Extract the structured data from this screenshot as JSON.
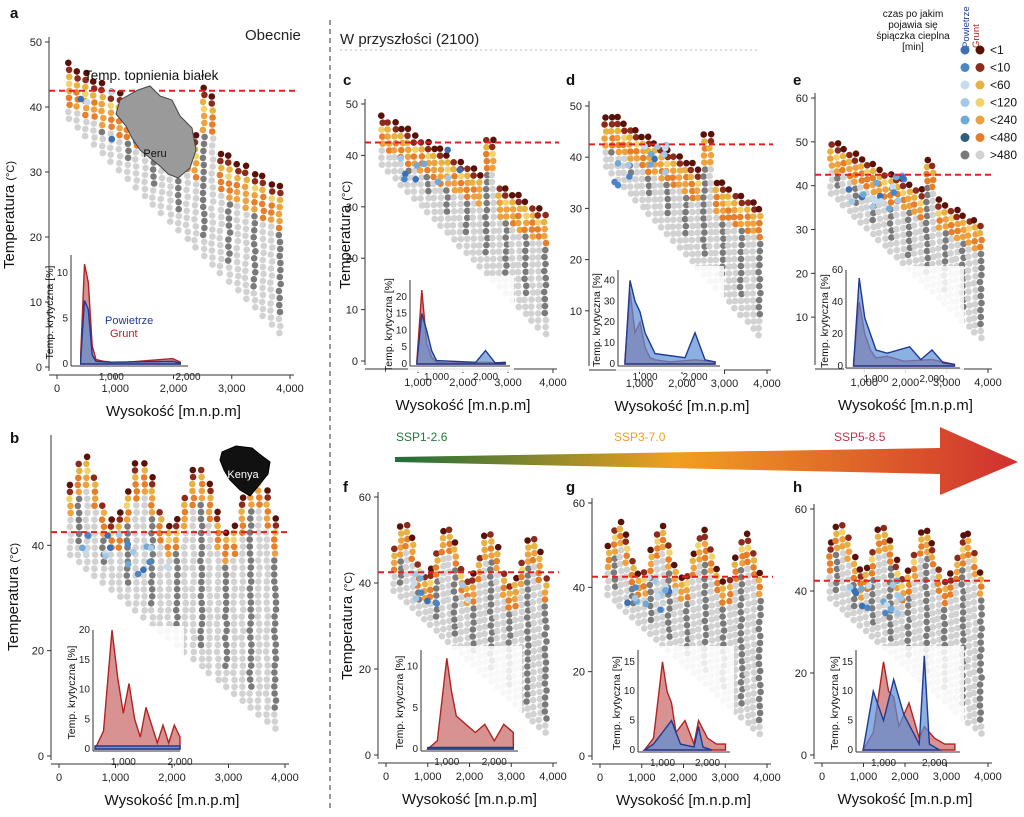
{
  "figure": {
    "header_present": "Obecnie",
    "header_future": "W przyszłości (2100)",
    "xlabel": "Wysokość  [m.n.p.m]",
    "ylabel": "Temperatura",
    "ylabel_unit": "(°C)",
    "inset_ylabel": "Temp. krytyczna [%]",
    "threshold_label": "Temp. topnienia białek",
    "threshold": 42.5
  },
  "countries": {
    "peru": "Peru",
    "kenya": "Kenya"
  },
  "inset_legend": {
    "air": "Powietrze",
    "ground": "Grunt"
  },
  "colors": {
    "air_line": "#1f3a93",
    "air_fill": "#5b8fd6",
    "ground_line": "#b22222",
    "ground_fill": "#c86464",
    "threshold": "#e02020",
    "bg_point": "#d2d2d2",
    "inner_point": "#7a7a7a"
  },
  "legend": {
    "title": "czas po jakim\npojawia się\nśpiączka cieplna\n[min]",
    "col_air": "Powietrze",
    "col_ground": "Grunt",
    "items": [
      {
        "label": "<1",
        "air": "#3b6fb6",
        "ground": "#5a1208"
      },
      {
        "label": "<10",
        "air": "#4a86c5",
        "ground": "#8c2a1c"
      },
      {
        "label": "<60",
        "air": "#c6dced",
        "ground": "#e8b243"
      },
      {
        "label": "<120",
        "air": "#a3c9e6",
        "ground": "#f2d26a"
      },
      {
        "label": "<240",
        "air": "#6fa9d6",
        "ground": "#eea23f"
      },
      {
        "label": "<480",
        "air": "#2e5f7a",
        "ground": "#e67e2a"
      },
      {
        "label": ">480",
        "air": "#7a7a7a",
        "ground": "#d2d2d2"
      }
    ]
  },
  "scenarios": [
    {
      "label": "SSP1-2.6",
      "color": "#1e7a3a"
    },
    {
      "label": "SSP3-7.0",
      "color": "#f0a020"
    },
    {
      "label": "SSP5-8.5",
      "color": "#c0304a"
    }
  ],
  "chart_data": [
    {
      "id": "a",
      "type": "scatter",
      "region": "Peru",
      "period": "Obecnie",
      "xlim": [
        0,
        4000
      ],
      "xticks": [
        "0",
        "1,000",
        "2,000",
        "3,000",
        "4,000"
      ],
      "ylim": [
        0,
        50
      ],
      "yticks": [
        0,
        10,
        20,
        30,
        40,
        50
      ],
      "inset": {
        "xlim": [
          500,
          2000
        ],
        "xticks": [
          "1,000",
          "2,000"
        ],
        "ylim": [
          0,
          12
        ],
        "yticks": [
          0,
          5,
          10
        ],
        "ground": {
          "x": [
            600,
            650,
            700,
            750,
            800,
            900,
            1000,
            1200,
            1800,
            1900
          ],
          "y": [
            1,
            11,
            9,
            2,
            0.5,
            0.3,
            0.2,
            0.2,
            0.6,
            0.2
          ]
        },
        "air": {
          "x": [
            600,
            650,
            700,
            750,
            800,
            1000,
            1800,
            1900
          ],
          "y": [
            0.5,
            7,
            6,
            1,
            0.3,
            0.2,
            0.3,
            0.1
          ]
        }
      }
    },
    {
      "id": "b",
      "type": "scatter",
      "region": "Kenya",
      "period": "Obecnie",
      "xlim": [
        0,
        4000
      ],
      "xticks": [
        "0",
        "1,000",
        "2,000",
        "3,000",
        "4,000"
      ],
      "ylim": [
        0,
        60
      ],
      "yticks": [
        0,
        20,
        40
      ],
      "inset": {
        "xlim": [
          500,
          2000
        ],
        "xticks": [
          "1,000",
          "2,000"
        ],
        "ylim": [
          0,
          20
        ],
        "yticks": [
          0,
          5,
          10,
          15,
          20
        ],
        "ground": {
          "x": [
            500,
            650,
            800,
            900,
            1000,
            1100,
            1200,
            1300,
            1400,
            1500,
            1600,
            1700,
            1800,
            1900,
            2000
          ],
          "y": [
            0,
            3,
            20,
            12,
            6,
            11,
            5,
            2,
            7,
            4,
            1,
            4,
            1,
            4,
            2
          ]
        },
        "air": {
          "x": [
            500,
            2000
          ],
          "y": [
            0.5,
            0.5
          ]
        }
      }
    },
    {
      "id": "c",
      "type": "scatter",
      "region": "Peru",
      "scenario": "SSP1-2.6",
      "xlim": [
        0,
        4000
      ],
      "xticks": [
        "1,000",
        "2,000",
        "3,000",
        "4,000"
      ],
      "ylim": [
        0,
        50
      ],
      "yticks": [
        0,
        10,
        20,
        30,
        40,
        50
      ],
      "inset": {
        "xlim": [
          500,
          2500
        ],
        "xticks": [
          "1,000",
          "2,000"
        ],
        "ylim": [
          0,
          25
        ],
        "yticks": [
          0,
          5,
          10,
          15,
          20
        ],
        "ground": {
          "x": [
            600,
            700,
            800,
            900,
            1000,
            1200,
            2000,
            2400
          ],
          "y": [
            1,
            22,
            6,
            2,
            0.5,
            0.3,
            0.5,
            0.3
          ]
        },
        "air": {
          "x": [
            600,
            700,
            800,
            900,
            1000,
            1800,
            2000,
            2200,
            2400
          ],
          "y": [
            0.5,
            15,
            10,
            4,
            1,
            0.5,
            4,
            0.3,
            0.5
          ]
        }
      }
    },
    {
      "id": "d",
      "type": "scatter",
      "region": "Peru",
      "scenario": "SSP3-7.0",
      "xlim": [
        0,
        4000
      ],
      "xticks": [
        "1,000",
        "2,000",
        "3,000",
        "4,000"
      ],
      "ylim": [
        0,
        50
      ],
      "yticks": [
        10,
        20,
        30,
        40,
        50
      ],
      "inset": {
        "xlim": [
          500,
          2500
        ],
        "xticks": [
          "1,000",
          "2,000"
        ],
        "ylim": [
          0,
          45
        ],
        "yticks": [
          0,
          10,
          20,
          30,
          40
        ],
        "ground": {
          "x": [
            600,
            700,
            800,
            900,
            1000,
            1100,
            1200,
            1500,
            2000,
            2400
          ],
          "y": [
            2,
            35,
            15,
            20,
            8,
            3,
            2,
            1,
            2,
            1
          ]
        },
        "air": {
          "x": [
            600,
            700,
            800,
            900,
            1000,
            1200,
            1800,
            2000,
            2200,
            2400
          ],
          "y": [
            1,
            40,
            30,
            25,
            15,
            5,
            3,
            15,
            2,
            1
          ]
        }
      }
    },
    {
      "id": "e",
      "type": "scatter",
      "region": "Peru",
      "scenario": "SSP5-8.5",
      "xlim": [
        0,
        4000
      ],
      "xticks": [
        "1,000",
        "2,000",
        "3,000",
        "4,000"
      ],
      "ylim": [
        0,
        60
      ],
      "yticks": [
        10,
        20,
        30,
        40,
        50,
        60
      ],
      "inset": {
        "xlim": [
          500,
          2500
        ],
        "xticks": [
          "1,000",
          "2,000"
        ],
        "ylim": [
          0,
          60
        ],
        "yticks": [
          0,
          20,
          40,
          60
        ],
        "ground": {
          "x": [
            600,
            700,
            800,
            900,
            1000,
            1200,
            1500,
            2000,
            2400
          ],
          "y": [
            2,
            40,
            20,
            10,
            5,
            6,
            3,
            4,
            1
          ]
        },
        "air": {
          "x": [
            600,
            700,
            800,
            900,
            1000,
            1200,
            1600,
            1800,
            2000,
            2200,
            2400
          ],
          "y": [
            1,
            55,
            30,
            20,
            10,
            8,
            12,
            4,
            10,
            2,
            1
          ]
        }
      }
    },
    {
      "id": "f",
      "type": "scatter",
      "region": "Kenya",
      "scenario": "SSP1-2.6",
      "xlim": [
        0,
        4000
      ],
      "xticks": [
        "0",
        "1,000",
        "2,000",
        "3,000",
        "4,000"
      ],
      "ylim": [
        0,
        60
      ],
      "yticks": [
        0,
        20,
        40,
        60
      ],
      "inset": {
        "xlim": [
          500,
          2500
        ],
        "xticks": [
          "1,000",
          "2,000"
        ],
        "ylim": [
          0,
          12
        ],
        "yticks": [
          0,
          5,
          10
        ],
        "ground": {
          "x": [
            600,
            800,
            1000,
            1100,
            1200,
            1400,
            1600,
            1800,
            2000,
            2200,
            2400
          ],
          "y": [
            0,
            1,
            11,
            7,
            4,
            3,
            2,
            3,
            1,
            3,
            2
          ]
        },
        "air": {
          "x": [
            600,
            2400
          ],
          "y": [
            0.2,
            0.2
          ]
        }
      }
    },
    {
      "id": "g",
      "type": "scatter",
      "region": "Kenya",
      "scenario": "SSP3-7.0",
      "xlim": [
        0,
        4000
      ],
      "xticks": [
        "0",
        "1,000",
        "2,000",
        "3,000",
        "4,000"
      ],
      "ylim": [
        0,
        60
      ],
      "yticks": [
        0,
        20,
        40,
        60
      ],
      "inset": {
        "xlim": [
          500,
          2500
        ],
        "xticks": [
          "1,000",
          "2,000"
        ],
        "ylim": [
          0,
          17
        ],
        "yticks": [
          0,
          5,
          10,
          15
        ],
        "ground": {
          "x": [
            600,
            800,
            1000,
            1100,
            1200,
            1300,
            1500,
            1700,
            1800,
            2000,
            2200,
            2400
          ],
          "y": [
            0,
            2,
            15,
            10,
            8,
            3,
            5,
            1,
            5,
            2,
            1,
            1
          ]
        },
        "air": {
          "x": [
            600,
            800,
            1000,
            1200,
            1400,
            1700,
            1800,
            1900,
            2100
          ],
          "y": [
            0,
            1,
            3,
            5,
            1,
            0.5,
            4,
            0.5,
            0
          ]
        }
      }
    },
    {
      "id": "h",
      "type": "scatter",
      "region": "Kenya",
      "scenario": "SSP5-8.5",
      "xlim": [
        0,
        4000
      ],
      "xticks": [
        "0",
        "1,000",
        "2,000",
        "3,000",
        "4,000"
      ],
      "ylim": [
        0,
        60
      ],
      "yticks": [
        0,
        20,
        40,
        60
      ],
      "inset": {
        "xlim": [
          500,
          2500
        ],
        "xticks": [
          "1,000",
          "2,000"
        ],
        "ylim": [
          0,
          17
        ],
        "yticks": [
          0,
          5,
          10,
          15
        ],
        "ground": {
          "x": [
            600,
            800,
            1000,
            1100,
            1200,
            1300,
            1500,
            1700,
            1800,
            2000,
            2200,
            2400
          ],
          "y": [
            0,
            3,
            15,
            10,
            9,
            4,
            8,
            2,
            4,
            2,
            1,
            1
          ]
        },
        "air": {
          "x": [
            600,
            800,
            1000,
            1200,
            1400,
            1700,
            1800,
            1900,
            2100
          ],
          "y": [
            0,
            10,
            5,
            12,
            6,
            1,
            16,
            1,
            0
          ]
        }
      }
    }
  ]
}
